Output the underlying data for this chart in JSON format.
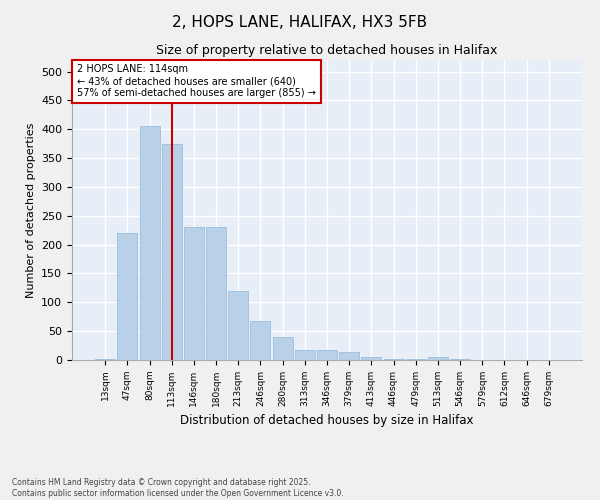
{
  "title1": "2, HOPS LANE, HALIFAX, HX3 5FB",
  "title2": "Size of property relative to detached houses in Halifax",
  "xlabel": "Distribution of detached houses by size in Halifax",
  "ylabel": "Number of detached properties",
  "categories": [
    "13sqm",
    "47sqm",
    "80sqm",
    "113sqm",
    "146sqm",
    "180sqm",
    "213sqm",
    "246sqm",
    "280sqm",
    "313sqm",
    "346sqm",
    "379sqm",
    "413sqm",
    "446sqm",
    "479sqm",
    "513sqm",
    "546sqm",
    "579sqm",
    "612sqm",
    "646sqm",
    "679sqm"
  ],
  "values": [
    2,
    220,
    405,
    375,
    230,
    230,
    120,
    68,
    40,
    18,
    18,
    14,
    5,
    1,
    1,
    5,
    1,
    0,
    0,
    0,
    0
  ],
  "bar_color": "#b8d0e8",
  "bar_edge_color": "#90b8d8",
  "highlight_index": 3,
  "highlight_color": "#cc0000",
  "annotation_title": "2 HOPS LANE: 114sqm",
  "annotation_line1": "← 43% of detached houses are smaller (640)",
  "annotation_line2": "57% of semi-detached houses are larger (855) →",
  "annotation_box_color": "#cc0000",
  "ylim": [
    0,
    520
  ],
  "yticks": [
    0,
    50,
    100,
    150,
    200,
    250,
    300,
    350,
    400,
    450,
    500
  ],
  "bg_color": "#e8eef8",
  "grid_color": "#ffffff",
  "fig_bg_color": "#f0f0f0",
  "footer1": "Contains HM Land Registry data © Crown copyright and database right 2025.",
  "footer2": "Contains public sector information licensed under the Open Government Licence v3.0."
}
